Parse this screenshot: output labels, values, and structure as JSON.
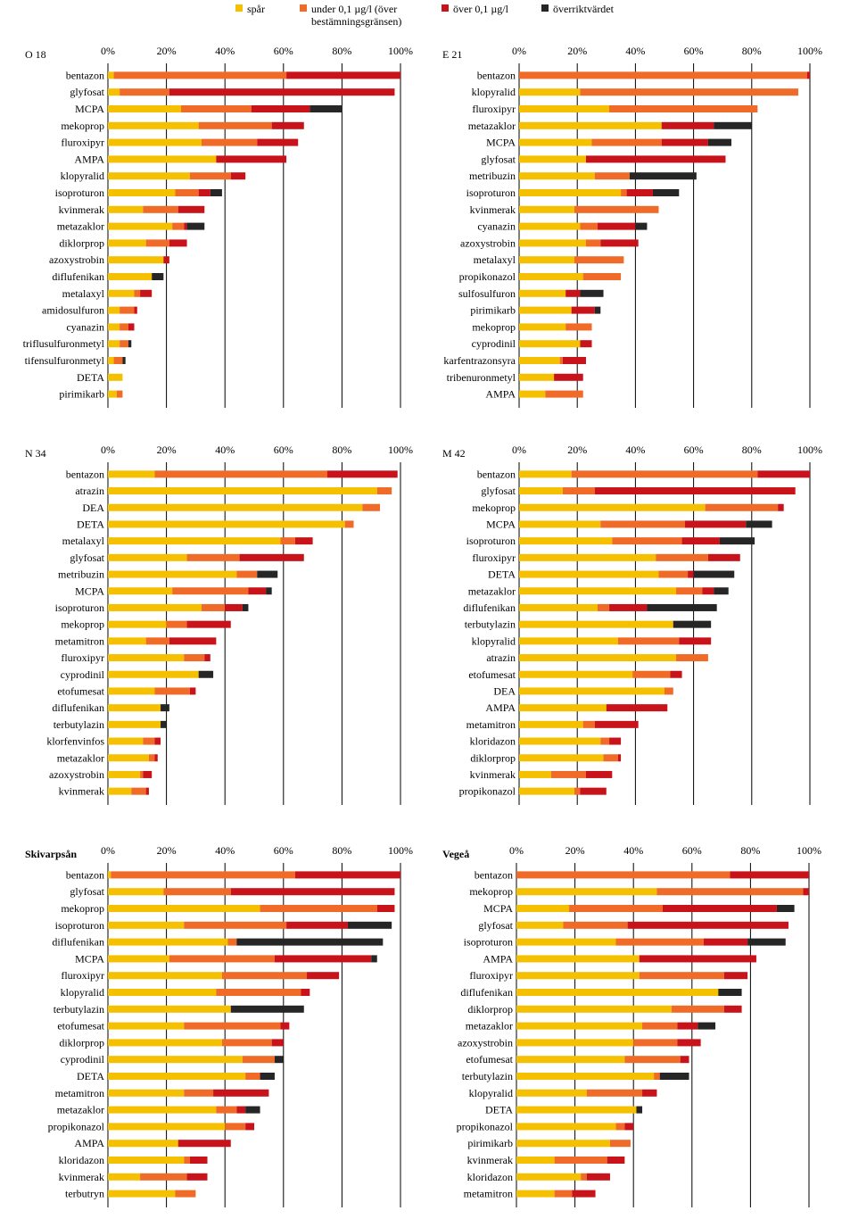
{
  "legend": [
    {
      "label": "spår",
      "color": "#f5c000"
    },
    {
      "label": "under 0,1 µg/l (över\nbestämningsgränsen)",
      "color": "#f06a28"
    },
    {
      "label": "över 0,1 µg/l",
      "color": "#c8131b"
    },
    {
      "label": "överriktvärdet",
      "color": "#262626"
    }
  ],
  "axis_ticks": [
    "0%",
    "20%",
    "40%",
    "60%",
    "80%",
    "100%"
  ],
  "chart_data": [
    {
      "type": "bar",
      "stacked": true,
      "orientation": "horizontal",
      "title": "O 18",
      "xlim": [
        0,
        100
      ],
      "categories": [
        "bentazon",
        "glyfosat",
        "MCPA",
        "mekoprop",
        "fluroxipyr",
        "AMPA",
        "klopyralid",
        "isoproturon",
        "kvinmerak",
        "metazaklor",
        "diklorprop",
        "azoxystrobin",
        "diflufenikan",
        "metalaxyl",
        "amidosulfuron",
        "cyanazin",
        "triflusulfuronmetyl",
        "tifensulfuronmetyl",
        "DETA",
        "pirimikarb"
      ],
      "series": [
        {
          "name": "spår",
          "values": [
            2,
            4,
            25,
            31,
            32,
            37,
            28,
            23,
            12,
            22,
            13,
            19,
            15,
            9,
            4,
            4,
            4,
            2,
            5,
            3
          ]
        },
        {
          "name": "under 0,1 µg/l (över bestämningsgränsen)",
          "values": [
            59,
            17,
            24,
            25,
            19,
            0,
            14,
            8,
            12,
            4,
            8,
            0,
            0,
            2,
            5,
            3,
            3,
            3,
            0,
            2
          ]
        },
        {
          "name": "över 0,1 µg/l",
          "values": [
            39,
            77,
            20,
            11,
            14,
            24,
            5,
            4,
            9,
            1,
            6,
            2,
            0,
            4,
            1,
            2,
            0,
            0,
            0,
            0
          ]
        },
        {
          "name": "överriktvärdet",
          "values": [
            0,
            0,
            11,
            0,
            0,
            0,
            0,
            4,
            0,
            6,
            0,
            0,
            4,
            0,
            0,
            0,
            1,
            1,
            0,
            0
          ]
        }
      ]
    },
    {
      "type": "bar",
      "stacked": true,
      "orientation": "horizontal",
      "title": "E 21",
      "xlim": [
        0,
        100
      ],
      "categories": [
        "bentazon",
        "klopyralid",
        "fluroxipyr",
        "metazaklor",
        "MCPA",
        "glyfosat",
        "metribuzin",
        "isoproturon",
        "kvinmerak",
        "cyanazin",
        "azoxystrobin",
        "metalaxyl",
        "propikonazol",
        "sulfosulfuron",
        "pirimikarb",
        "mekoprop",
        "cyprodinil",
        "karfentrazonsyra",
        "tribenuronmetyl",
        "AMPA"
      ],
      "series": [
        {
          "name": "spår",
          "values": [
            0,
            21,
            31,
            49,
            25,
            23,
            26,
            35,
            19,
            21,
            23,
            19,
            22,
            16,
            18,
            16,
            21,
            14,
            12,
            9
          ]
        },
        {
          "name": "under 0,1 µg/l (över bestämningsgränsen)",
          "values": [
            99,
            75,
            51,
            0,
            24,
            0,
            12,
            2,
            29,
            6,
            5,
            17,
            13,
            0,
            0,
            9,
            0,
            1,
            0,
            13
          ]
        },
        {
          "name": "över 0,1 µg/l",
          "values": [
            1,
            0,
            0,
            18,
            16,
            48,
            0,
            9,
            0,
            13,
            13,
            0,
            0,
            5,
            8,
            0,
            4,
            8,
            10,
            0
          ]
        },
        {
          "name": "överriktvärdet",
          "values": [
            0,
            0,
            0,
            13,
            8,
            0,
            23,
            9,
            0,
            4,
            0,
            0,
            0,
            8,
            2,
            0,
            0,
            0,
            0,
            0
          ]
        }
      ]
    },
    {
      "type": "bar",
      "stacked": true,
      "orientation": "horizontal",
      "title": "N 34",
      "xlim": [
        0,
        100
      ],
      "categories": [
        "bentazon",
        "atrazin",
        "DEA",
        "DETA",
        "metalaxyl",
        "glyfosat",
        "metribuzin",
        "MCPA",
        "isoproturon",
        "mekoprop",
        "metamitron",
        "fluroxipyr",
        "cyprodinil",
        "etofumesat",
        "diflufenikan",
        "terbutylazin",
        "klorfenvinfos",
        "metazaklor",
        "azoxystrobin",
        "kvinmerak"
      ],
      "series": [
        {
          "name": "spår",
          "values": [
            16,
            92,
            87,
            81,
            59,
            27,
            44,
            22,
            32,
            20,
            13,
            26,
            31,
            16,
            18,
            18,
            12,
            14,
            11,
            8
          ]
        },
        {
          "name": "under 0,1 µg/l (över bestämningsgränsen)",
          "values": [
            59,
            5,
            6,
            3,
            5,
            18,
            7,
            26,
            8,
            7,
            8,
            7,
            0,
            12,
            0,
            0,
            4,
            2,
            1,
            5
          ]
        },
        {
          "name": "över 0,1 µg/l",
          "values": [
            24,
            0,
            0,
            0,
            6,
            22,
            0,
            6,
            6,
            15,
            16,
            2,
            0,
            2,
            0,
            0,
            2,
            1,
            3,
            1
          ]
        },
        {
          "name": "överriktvärdet",
          "values": [
            0,
            0,
            0,
            0,
            0,
            0,
            7,
            2,
            2,
            0,
            0,
            0,
            5,
            0,
            3,
            2,
            0,
            0,
            0,
            0
          ]
        }
      ]
    },
    {
      "type": "bar",
      "stacked": true,
      "orientation": "horizontal",
      "title": "M 42",
      "xlim": [
        0,
        100
      ],
      "categories": [
        "bentazon",
        "glyfosat",
        "mekoprop",
        "MCPA",
        "isoproturon",
        "fluroxipyr",
        "DETA",
        "metazaklor",
        "diflufenikan",
        "terbutylazin",
        "klopyralid",
        "atrazin",
        "etofumesat",
        "DEA",
        "AMPA",
        "metamitron",
        "kloridazon",
        "diklorprop",
        "kvinmerak",
        "propikonazol"
      ],
      "series": [
        {
          "name": "spår",
          "values": [
            18,
            15,
            64,
            28,
            32,
            47,
            48,
            54,
            27,
            53,
            34,
            54,
            39,
            50,
            30,
            22,
            28,
            29,
            11,
            19
          ]
        },
        {
          "name": "under 0,1 µg/l (över bestämningsgränsen)",
          "values": [
            64,
            11,
            25,
            29,
            24,
            18,
            10,
            9,
            4,
            0,
            21,
            11,
            13,
            3,
            0,
            4,
            3,
            5,
            12,
            2
          ]
        },
        {
          "name": "över 0,1 µg/l",
          "values": [
            18,
            69,
            2,
            21,
            13,
            11,
            2,
            4,
            13,
            0,
            11,
            0,
            4,
            0,
            21,
            15,
            4,
            1,
            9,
            9
          ]
        },
        {
          "name": "överriktvärdet",
          "values": [
            0,
            0,
            0,
            9,
            12,
            0,
            14,
            5,
            24,
            13,
            0,
            0,
            0,
            0,
            0,
            0,
            0,
            0,
            0,
            0
          ]
        }
      ]
    },
    {
      "type": "bar",
      "stacked": true,
      "orientation": "horizontal",
      "title": "Skivarpsån",
      "xlim": [
        0,
        100
      ],
      "categories": [
        "bentazon",
        "glyfosat",
        "mekoprop",
        "isoproturon",
        "diflufenikan",
        "MCPA",
        "fluroxipyr",
        "klopyralid",
        "terbutylazin",
        "etofumesat",
        "diklorprop",
        "cyprodinil",
        "DETA",
        "metamitron",
        "metazaklor",
        "propikonazol",
        "AMPA",
        "kloridazon",
        "kvinmerak",
        "terbutryn"
      ],
      "series": [
        {
          "name": "spår",
          "values": [
            1,
            19,
            52,
            26,
            41,
            21,
            39,
            37,
            42,
            26,
            39,
            46,
            47,
            26,
            37,
            40,
            24,
            26,
            11,
            23
          ]
        },
        {
          "name": "under 0,1 µg/l (över bestämningsgränsen)",
          "values": [
            63,
            23,
            40,
            35,
            3,
            36,
            29,
            29,
            0,
            33,
            17,
            11,
            5,
            10,
            7,
            7,
            0,
            2,
            16,
            7
          ]
        },
        {
          "name": "över 0,1 µg/l",
          "values": [
            36,
            56,
            6,
            21,
            0,
            33,
            11,
            3,
            0,
            3,
            4,
            0,
            0,
            19,
            3,
            3,
            18,
            6,
            7,
            0
          ]
        },
        {
          "name": "överriktvärdet",
          "values": [
            0,
            0,
            0,
            15,
            50,
            2,
            0,
            0,
            25,
            0,
            0,
            3,
            5,
            0,
            5,
            0,
            0,
            0,
            0,
            0
          ]
        }
      ]
    },
    {
      "type": "bar",
      "stacked": true,
      "orientation": "horizontal",
      "title": "Vegeå",
      "xlim": [
        0,
        100
      ],
      "categories": [
        "bentazon",
        "mekoprop",
        "MCPA",
        "glyfosat",
        "isoproturon",
        "AMPA",
        "fluroxipyr",
        "diflufenikan",
        "diklorprop",
        "metazaklor",
        "azoxystrobin",
        "etofumesat",
        "terbutylazin",
        "klopyralid",
        "DETA",
        "propikonazol",
        "pirimikarb",
        "kvinmerak",
        "kloridazon",
        "metamitron"
      ],
      "series": [
        {
          "name": "spår",
          "values": [
            0,
            48,
            18,
            16,
            34,
            42,
            42,
            69,
            53,
            43,
            40,
            37,
            47,
            24,
            41,
            34,
            32,
            13,
            22,
            13
          ]
        },
        {
          "name": "under 0,1 µg/l (över bestämningsgränsen)",
          "values": [
            73,
            50,
            32,
            22,
            30,
            0,
            29,
            0,
            18,
            12,
            15,
            19,
            2,
            19,
            0,
            3,
            7,
            18,
            2,
            6
          ]
        },
        {
          "name": "över 0,1 µg/l",
          "values": [
            27,
            2,
            39,
            55,
            15,
            40,
            8,
            0,
            6,
            7,
            8,
            3,
            0,
            5,
            0,
            3,
            0,
            6,
            8,
            8
          ]
        },
        {
          "name": "överriktvärdet",
          "values": [
            0,
            0,
            6,
            0,
            13,
            0,
            0,
            8,
            0,
            6,
            0,
            0,
            10,
            0,
            2,
            0,
            0,
            0,
            0,
            0
          ]
        }
      ]
    }
  ]
}
